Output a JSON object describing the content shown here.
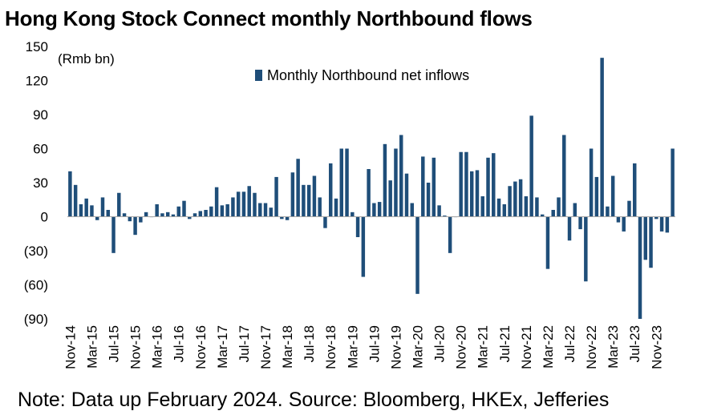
{
  "title": "Hong Kong Stock Connect monthly Northbound flows",
  "note": "Note: Data up February 2024. Source: Bloomberg, HKEx, Jefferies",
  "chart_data": {
    "type": "bar",
    "unit_label": "(Rmb bn)",
    "ylim": [
      -90,
      150
    ],
    "yticks": [
      150,
      120,
      90,
      60,
      30,
      0,
      -30,
      -60,
      -90
    ],
    "ytick_labels": [
      "150",
      "120",
      "90",
      "60",
      "30",
      "0",
      "(30)",
      "(60)",
      "(90)"
    ],
    "grid": false,
    "legend_position": "top-center",
    "bar_color": "#1f4e79",
    "series": [
      {
        "name": "Monthly Northbound net inflows",
        "values": [
          40,
          28,
          11,
          16,
          10,
          -3,
          17,
          6,
          -32,
          21,
          3,
          -4,
          -16,
          -5,
          4,
          0,
          11,
          3,
          4,
          2,
          9,
          14,
          -2,
          3,
          5,
          6,
          9,
          26,
          10,
          11,
          17,
          22,
          22,
          27,
          21,
          12,
          12,
          8,
          35,
          -2,
          -3,
          39,
          51,
          28,
          28,
          36,
          17,
          -10,
          47,
          16,
          60,
          60,
          4,
          -18,
          -53,
          42,
          12,
          13,
          64,
          32,
          60,
          72,
          38,
          12,
          -68,
          53,
          30,
          52,
          10,
          1,
          -32,
          0,
          57,
          57,
          40,
          41,
          18,
          52,
          56,
          16,
          11,
          27,
          31,
          33,
          18,
          89,
          17,
          2,
          -46,
          6,
          17,
          72,
          -21,
          12,
          -11,
          -57,
          60,
          35,
          140,
          9,
          36,
          -5,
          -13,
          14,
          47,
          -90,
          -38,
          -45,
          -2,
          -13,
          -14,
          60
        ]
      }
    ],
    "x_tick_labels": [
      "Nov-14",
      "Mar-15",
      "Jul-15",
      "Nov-15",
      "Mar-16",
      "Jul-16",
      "Nov-16",
      "Mar-17",
      "Jul-17",
      "Nov-17",
      "Mar-18",
      "Jul-18",
      "Nov-18",
      "Mar-19",
      "Jul-19",
      "Nov-19",
      "Mar-20",
      "Jul-20",
      "Nov-20",
      "Mar-21",
      "Jul-21",
      "Nov-21",
      "Mar-22",
      "Jul-22",
      "Nov-22",
      "Mar-23",
      "Jul-23",
      "Nov-23"
    ]
  }
}
